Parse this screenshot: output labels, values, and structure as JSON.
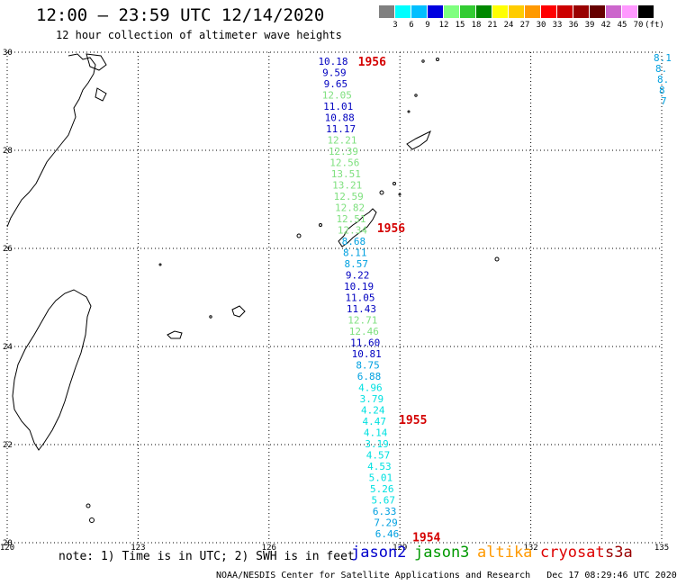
{
  "header": {
    "title": "12:00 – 23:59 UTC 12/14/2020",
    "subtitle": "12 hour collection of altimeter wave heights"
  },
  "legend": {
    "unit": "(ft)",
    "colors": [
      "#808080",
      "#00ffff",
      "#00bfff",
      "#0000e0",
      "#7fff7f",
      "#33cc33",
      "#008800",
      "#ffff00",
      "#ffcc00",
      "#ff9900",
      "#ff0000",
      "#cc0000",
      "#990000",
      "#660000",
      "#cc66cc",
      "#ff99ff",
      "#000000"
    ],
    "labels": [
      "3",
      "6",
      "9",
      "12",
      "15",
      "18",
      "21",
      "24",
      "27",
      "30",
      "33",
      "36",
      "39",
      "42",
      "45",
      "70"
    ]
  },
  "axes": {
    "lon_ticks": [
      "120",
      "123",
      "126",
      "129",
      "132",
      "135"
    ],
    "lat_ticks": [
      "30",
      "28",
      "26",
      "24",
      "22",
      "20"
    ]
  },
  "passes": [
    {
      "label": "1956",
      "lat": 29.8
    },
    {
      "label": "1956",
      "lat": 26.4
    },
    {
      "label": "1955",
      "lat": 22.5
    },
    {
      "label": "1954",
      "lat": 20.1
    }
  ],
  "track": [
    {
      "v": "10.18",
      "c": "#0000c0"
    },
    {
      "v": "9.59",
      "c": "#0000c0"
    },
    {
      "v": "9.65",
      "c": "#0000c0"
    },
    {
      "v": "12.05",
      "c": "#7fe07f"
    },
    {
      "v": "11.01",
      "c": "#0000c0"
    },
    {
      "v": "10.88",
      "c": "#0000c0"
    },
    {
      "v": "11.17",
      "c": "#0000c0"
    },
    {
      "v": "12.21",
      "c": "#7fe07f"
    },
    {
      "v": "12.39",
      "c": "#7fe07f"
    },
    {
      "v": "12.56",
      "c": "#7fe07f"
    },
    {
      "v": "13.51",
      "c": "#7fe07f"
    },
    {
      "v": "13.21",
      "c": "#7fe07f"
    },
    {
      "v": "12.59",
      "c": "#7fe07f"
    },
    {
      "v": "12.82",
      "c": "#7fe07f"
    },
    {
      "v": "12.51",
      "c": "#7fe07f"
    },
    {
      "v": "12.34",
      "c": "#7fe07f"
    },
    {
      "v": "8.68",
      "c": "#00a0e0"
    },
    {
      "v": "8.11",
      "c": "#00a0e0"
    },
    {
      "v": "8.57",
      "c": "#00a0e0"
    },
    {
      "v": "9.22",
      "c": "#0000c0"
    },
    {
      "v": "10.19",
      "c": "#0000c0"
    },
    {
      "v": "11.05",
      "c": "#0000c0"
    },
    {
      "v": "11.43",
      "c": "#0000c0"
    },
    {
      "v": "12.71",
      "c": "#7fe07f"
    },
    {
      "v": "12.46",
      "c": "#7fe07f"
    },
    {
      "v": "11.60",
      "c": "#0000c0"
    },
    {
      "v": "10.81",
      "c": "#0000c0"
    },
    {
      "v": "8.75",
      "c": "#00a0e0"
    },
    {
      "v": "6.88",
      "c": "#00a0e0"
    },
    {
      "v": "4.96",
      "c": "#00e0e0"
    },
    {
      "v": "3.79",
      "c": "#00e0e0"
    },
    {
      "v": "4.24",
      "c": "#00e0e0"
    },
    {
      "v": "4.47",
      "c": "#00e0e0"
    },
    {
      "v": "4.14",
      "c": "#00e0e0"
    },
    {
      "v": "3.19",
      "c": "#00e0e0"
    },
    {
      "v": "4.57",
      "c": "#00e0e0"
    },
    {
      "v": "4.53",
      "c": "#00e0e0"
    },
    {
      "v": "5.01",
      "c": "#00e0e0"
    },
    {
      "v": "5.26",
      "c": "#00e0e0"
    },
    {
      "v": "5.67",
      "c": "#00e0e0"
    },
    {
      "v": "6.33",
      "c": "#00a0e0"
    },
    {
      "v": "7.29",
      "c": "#00a0e0"
    },
    {
      "v": "6.46",
      "c": "#00a0e0"
    }
  ],
  "edge_values": [
    "8.1",
    "8.",
    "8.",
    "8",
    "7"
  ],
  "footer": {
    "note": "note: 1) Time is in UTC; 2) SWH is in feet",
    "satellites": [
      {
        "name": "jason2",
        "color": "#0000cc"
      },
      {
        "name": "jason3",
        "color": "#009900"
      },
      {
        "name": "altika",
        "color": "#ff9900"
      },
      {
        "name": "cryosat",
        "color": "#dd0000"
      },
      {
        "name": "s3a",
        "color": "#990000"
      }
    ],
    "credit": "NOAA/NESDIS Center for Satellite Applications and Research   Dec 17 08:29:46 UTC 2020"
  }
}
